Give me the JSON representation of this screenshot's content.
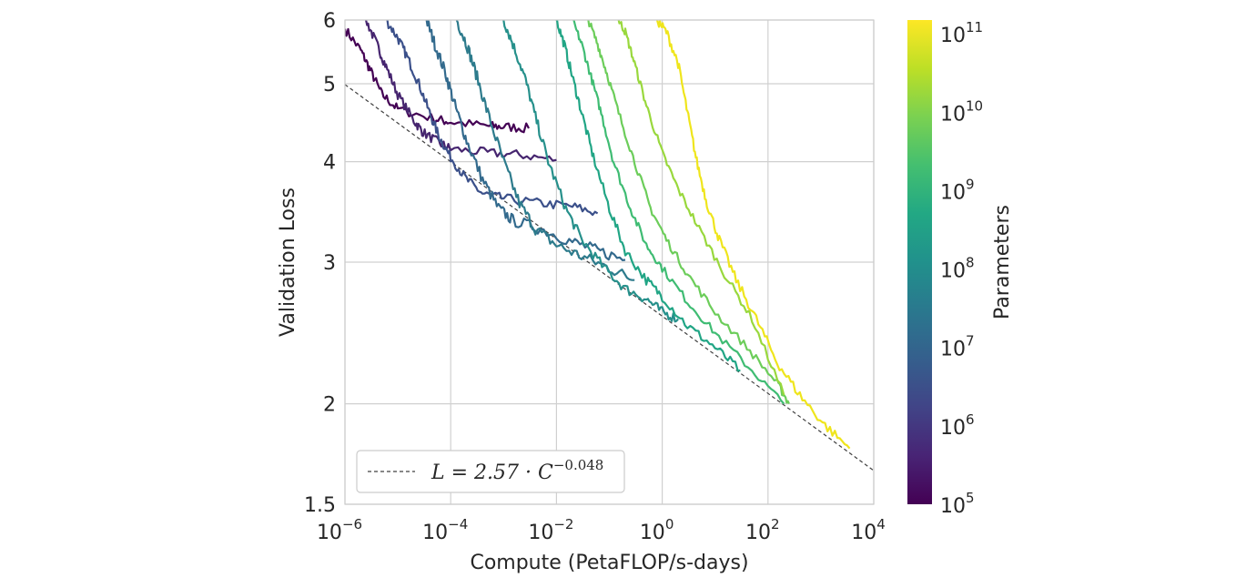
{
  "chart_data": {
    "type": "line",
    "xlabel": "Compute (PetaFLOP/s-days)",
    "ylabel": "Validation Loss",
    "xscale": "log",
    "yscale": "log",
    "xlim": [
      1e-06,
      10000.0
    ],
    "ylim": [
      1.5,
      6
    ],
    "x_ticks": [
      {
        "value": 1e-06,
        "base": "10",
        "exp": "−6"
      },
      {
        "value": 0.0001,
        "base": "10",
        "exp": "−4"
      },
      {
        "value": 0.01,
        "base": "10",
        "exp": "−2"
      },
      {
        "value": 1,
        "base": "10",
        "exp": "0"
      },
      {
        "value": 100,
        "base": "10",
        "exp": "2"
      },
      {
        "value": 10000,
        "base": "10",
        "exp": "4"
      }
    ],
    "y_ticks": [
      {
        "value": 1.5,
        "label": "1.5"
      },
      {
        "value": 2,
        "label": "2"
      },
      {
        "value": 3,
        "label": "3"
      },
      {
        "value": 4,
        "label": "4"
      },
      {
        "value": 5,
        "label": "5"
      },
      {
        "value": 6,
        "label": "6"
      }
    ],
    "grid": true,
    "legend": {
      "placement": "lower-left",
      "label": "L = 2.57 · C^−0.048",
      "prefix": "L = 2.57 · C",
      "exponent": "−0.048"
    },
    "fit_line": {
      "coef": 2.57,
      "exponent": -0.048,
      "style": "dashed",
      "color": "#404040"
    },
    "colorbar": {
      "label": "Parameters",
      "scale": "log",
      "colormap": "viridis",
      "range": [
        100000.0,
        150000000000.0
      ],
      "ticks": [
        {
          "value": 100000.0,
          "base": "10",
          "exp": "5"
        },
        {
          "value": 1000000.0,
          "base": "10",
          "exp": "6"
        },
        {
          "value": 10000000.0,
          "base": "10",
          "exp": "7"
        },
        {
          "value": 100000000.0,
          "base": "10",
          "exp": "8"
        },
        {
          "value": 1000000000.0,
          "base": "10",
          "exp": "9"
        },
        {
          "value": 10000000000.0,
          "base": "10",
          "exp": "10"
        },
        {
          "value": 100000000000.0,
          "base": "10",
          "exp": "11"
        }
      ]
    },
    "series": [
      {
        "params": 120000.0,
        "color": "#440154",
        "noise": 0.012,
        "points": [
          [
            1e-06,
            5.85
          ],
          [
            2e-06,
            5.5
          ],
          [
            3e-06,
            5.2
          ],
          [
            5e-06,
            4.85
          ],
          [
            1e-05,
            4.65
          ],
          [
            5e-05,
            4.52
          ],
          [
            0.0001,
            4.48
          ],
          [
            0.0005,
            4.43
          ],
          [
            0.001,
            4.42
          ],
          [
            0.003,
            4.4
          ]
        ]
      },
      {
        "params": 400000.0,
        "color": "#46256f",
        "noise": 0.012,
        "points": [
          [
            2.5e-06,
            6.0
          ],
          [
            4e-06,
            5.6
          ],
          [
            6e-06,
            5.25
          ],
          [
            1e-05,
            4.85
          ],
          [
            2e-05,
            4.5
          ],
          [
            3e-05,
            4.35
          ],
          [
            6e-05,
            4.22
          ],
          [
            0.0001,
            4.15
          ],
          [
            0.0005,
            4.1
          ],
          [
            0.002,
            4.08
          ],
          [
            0.01,
            4.02
          ]
        ]
      },
      {
        "params": 1500000.0,
        "color": "#3b508a",
        "noise": 0.012,
        "points": [
          [
            6e-06,
            6.0
          ],
          [
            1e-05,
            5.7
          ],
          [
            1.5e-05,
            5.4
          ],
          [
            2.5e-05,
            5.0
          ],
          [
            4e-05,
            4.6
          ],
          [
            6e-05,
            4.3
          ],
          [
            0.0001,
            4.05
          ],
          [
            0.0002,
            3.8
          ],
          [
            0.0004,
            3.65
          ],
          [
            0.001,
            3.6
          ],
          [
            0.005,
            3.55
          ],
          [
            0.02,
            3.52
          ],
          [
            0.06,
            3.45
          ]
        ]
      },
      {
        "params": 6000000.0,
        "color": "#336a8d",
        "noise": 0.015,
        "points": [
          [
            3.5e-05,
            6.0
          ],
          [
            5e-05,
            5.6
          ],
          [
            8e-05,
            5.15
          ],
          [
            0.00012,
            4.7
          ],
          [
            0.0002,
            4.25
          ],
          [
            0.0004,
            3.8
          ],
          [
            0.0008,
            3.5
          ],
          [
            0.0015,
            3.38
          ],
          [
            0.005,
            3.3
          ],
          [
            0.02,
            3.18
          ],
          [
            0.06,
            3.1
          ],
          [
            0.2,
            3.02
          ]
        ]
      },
      {
        "params": 25000000.0,
        "color": "#2d7b8c",
        "noise": 0.015,
        "points": [
          [
            0.00013,
            6.0
          ],
          [
            0.0002,
            5.6
          ],
          [
            0.0003,
            5.15
          ],
          [
            0.0005,
            4.6
          ],
          [
            0.001,
            4.0
          ],
          [
            0.002,
            3.55
          ],
          [
            0.004,
            3.3
          ],
          [
            0.01,
            3.15
          ],
          [
            0.03,
            3.05
          ],
          [
            0.1,
            2.95
          ],
          [
            0.3,
            2.85
          ]
        ]
      },
      {
        "params": 100000000.0,
        "color": "#26908b",
        "noise": 0.013,
        "points": [
          [
            0.001,
            6.0
          ],
          [
            0.0015,
            5.6
          ],
          [
            0.0025,
            5.1
          ],
          [
            0.004,
            4.55
          ],
          [
            0.007,
            4.0
          ],
          [
            0.015,
            3.5
          ],
          [
            0.03,
            3.2
          ],
          [
            0.08,
            2.95
          ],
          [
            0.2,
            2.78
          ],
          [
            0.5,
            2.7
          ],
          [
            1.0,
            2.6
          ],
          [
            2.0,
            2.55
          ]
        ]
      },
      {
        "params": 400000000.0,
        "color": "#21a585",
        "noise": 0.012,
        "points": [
          [
            0.01,
            6.0
          ],
          [
            0.014,
            5.6
          ],
          [
            0.02,
            5.1
          ],
          [
            0.03,
            4.6
          ],
          [
            0.05,
            4.05
          ],
          [
            0.1,
            3.5
          ],
          [
            0.2,
            3.1
          ],
          [
            0.5,
            2.85
          ],
          [
            1.0,
            2.72
          ],
          [
            3.0,
            2.5
          ],
          [
            10,
            2.35
          ],
          [
            30,
            2.2
          ]
        ]
      },
      {
        "params": 1500000000.0,
        "color": "#3fbc73",
        "noise": 0.01,
        "points": [
          [
            0.02,
            6.0
          ],
          [
            0.03,
            5.6
          ],
          [
            0.045,
            5.1
          ],
          [
            0.07,
            4.6
          ],
          [
            0.12,
            4.0
          ],
          [
            0.25,
            3.5
          ],
          [
            0.5,
            3.15
          ],
          [
            1.0,
            2.95
          ],
          [
            3.0,
            2.68
          ],
          [
            10,
            2.45
          ],
          [
            50,
            2.2
          ],
          [
            200,
            2.0
          ]
        ]
      },
      {
        "params": 5000000000.0,
        "color": "#6ccd5a",
        "noise": 0.01,
        "points": [
          [
            0.04,
            6.0
          ],
          [
            0.06,
            5.6
          ],
          [
            0.09,
            5.15
          ],
          [
            0.15,
            4.6
          ],
          [
            0.3,
            4.0
          ],
          [
            0.6,
            3.5
          ],
          [
            1.2,
            3.2
          ],
          [
            3.0,
            2.9
          ],
          [
            10,
            2.6
          ],
          [
            40,
            2.35
          ],
          [
            150,
            2.12
          ],
          [
            250,
            2.0
          ]
        ]
      },
      {
        "params": 15000000000.0,
        "color": "#99d83d",
        "noise": 0.01,
        "points": [
          [
            0.15,
            6.0
          ],
          [
            0.2,
            5.8
          ],
          [
            0.3,
            5.3
          ],
          [
            0.5,
            4.7
          ],
          [
            1.0,
            4.1
          ],
          [
            2.0,
            3.7
          ],
          [
            5.0,
            3.3
          ],
          [
            15,
            2.9
          ],
          [
            50,
            2.55
          ],
          [
            200,
            2.05
          ]
        ]
      },
      {
        "params": 150000000000.0,
        "color": "#efe51c",
        "noise": 0.012,
        "points": [
          [
            0.8,
            6.0
          ],
          [
            1.2,
            5.8
          ],
          [
            2.0,
            5.3
          ],
          [
            3.0,
            4.6
          ],
          [
            4.5,
            4.0
          ],
          [
            7.0,
            3.55
          ],
          [
            12,
            3.2
          ],
          [
            25,
            2.85
          ],
          [
            60,
            2.55
          ],
          [
            150,
            2.25
          ],
          [
            400,
            2.05
          ],
          [
            1200,
            1.88
          ],
          [
            3500,
            1.76
          ]
        ]
      }
    ]
  }
}
